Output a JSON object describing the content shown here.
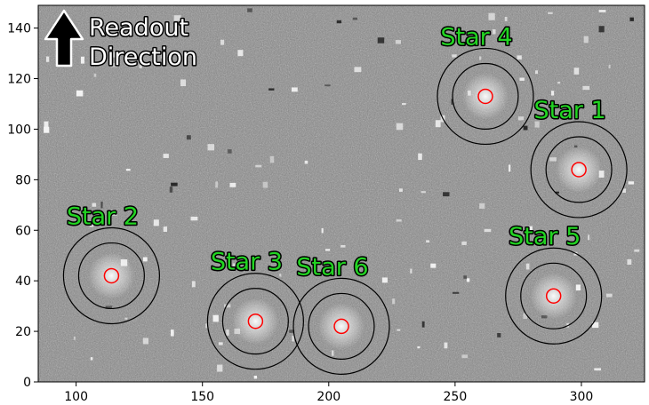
{
  "chart_data": {
    "type": "scatter",
    "title": "",
    "xlabel": "",
    "ylabel": "",
    "xlim": [
      85,
      325
    ],
    "ylim": [
      0,
      149
    ],
    "x_ticks": [
      100,
      150,
      200,
      250,
      300
    ],
    "y_ticks": [
      0,
      20,
      40,
      60,
      80,
      100,
      120,
      140
    ],
    "grid": false,
    "background": "grayscale noise image",
    "aperture_color": "#ff0000",
    "annulus_color": "#000000",
    "label_color": "#22d422",
    "stars": [
      {
        "label": "Star 1",
        "x": 299,
        "y": 84,
        "ann_r_in": 13,
        "ann_r_out": 19
      },
      {
        "label": "Star 2",
        "x": 114,
        "y": 42,
        "ann_r_in": 13,
        "ann_r_out": 19
      },
      {
        "label": "Star 3",
        "x": 171,
        "y": 24,
        "ann_r_in": 13,
        "ann_r_out": 19
      },
      {
        "label": "Star 4",
        "x": 262,
        "y": 113,
        "ann_r_in": 13,
        "ann_r_out": 19
      },
      {
        "label": "Star 5",
        "x": 289,
        "y": 34,
        "ann_r_in": 13,
        "ann_r_out": 19
      },
      {
        "label": "Star 6",
        "x": 205,
        "y": 22,
        "ann_r_in": 13,
        "ann_r_out": 19
      }
    ],
    "annotation": {
      "text_lines": [
        "Readout",
        "Direction"
      ],
      "icon": "arrow-up-icon"
    }
  }
}
